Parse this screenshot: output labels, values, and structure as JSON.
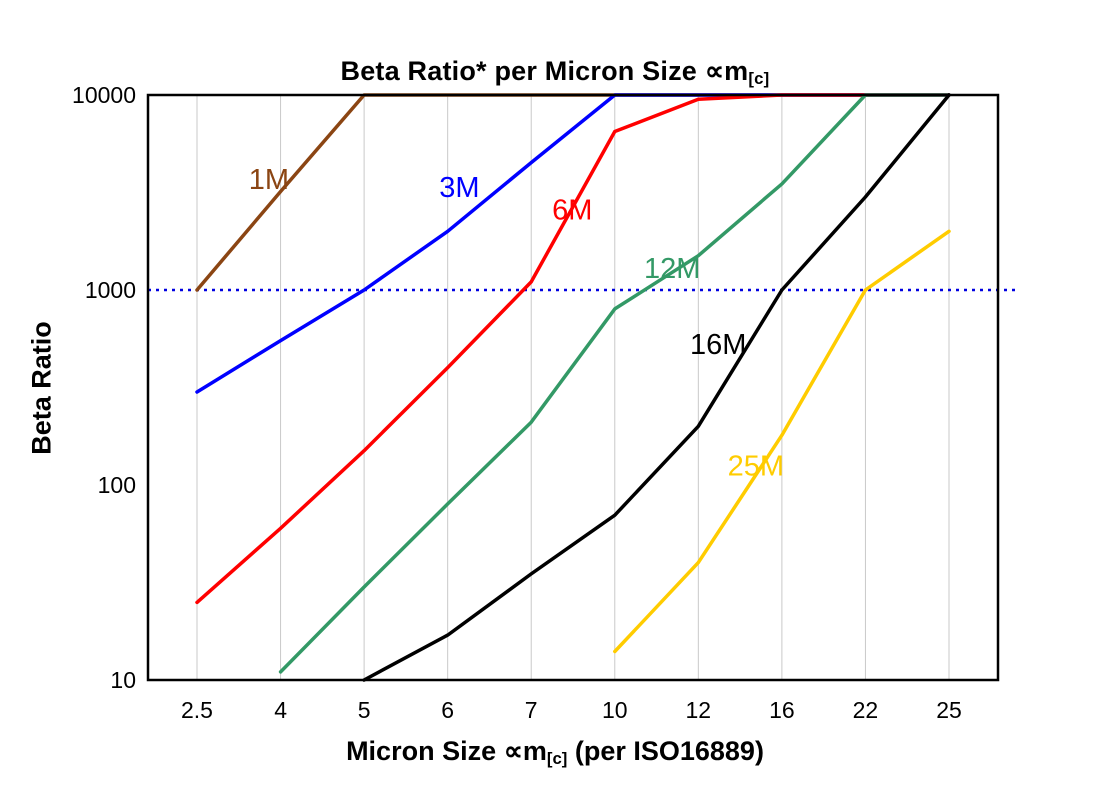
{
  "chart_data": {
    "type": "line",
    "title_main": "Beta Ratio* per Micron Size ∝m",
    "title_sub": "[c]",
    "ylabel": "Beta Ratio",
    "xlabel_main": "Micron Size ∝m",
    "xlabel_sub": "[c]",
    "xlabel_tail": " (per ISO16889)",
    "x_categories": [
      "2.5",
      "4",
      "5",
      "6",
      "7",
      "10",
      "12",
      "16",
      "22",
      "25"
    ],
    "y_scale": "log",
    "ylim": [
      10,
      10000
    ],
    "y_ticks": [
      10,
      100,
      1000,
      10000
    ],
    "grid": "vertical",
    "grid_color": "#c9c9c9",
    "reference_line": {
      "y": 1000,
      "color": "#0000E0",
      "style": "dotted"
    },
    "series": [
      {
        "name": "1M",
        "color": "#8B4513",
        "values": [
          1000,
          3200,
          10000,
          10000,
          10000,
          10000,
          10000,
          10000,
          10000,
          10000
        ],
        "label": {
          "xi": 0.62,
          "y": 3300
        }
      },
      {
        "name": "3M",
        "color": "#0000FF",
        "values": [
          300,
          550,
          1000,
          2000,
          4500,
          10000,
          10000,
          10000,
          10000,
          10000
        ],
        "label": {
          "xi": 2.9,
          "y": 3000
        }
      },
      {
        "name": "6M",
        "color": "#FF0000",
        "values": [
          25,
          60,
          150,
          400,
          1100,
          6500,
          9500,
          10000,
          10000,
          10000
        ],
        "label": {
          "xi": 4.25,
          "y": 2300
        }
      },
      {
        "name": "12M",
        "color": "#339966",
        "values": [
          null,
          11,
          30,
          80,
          210,
          800,
          1500,
          3500,
          10000,
          10000
        ],
        "label": {
          "xi": 5.35,
          "y": 1150
        }
      },
      {
        "name": "16M",
        "color": "#000000",
        "values": [
          null,
          null,
          10,
          17,
          35,
          70,
          200,
          1000,
          3000,
          10000
        ],
        "label": {
          "xi": 5.9,
          "y": 470
        }
      },
      {
        "name": "25M",
        "color": "#FFCC00",
        "values": [
          null,
          null,
          null,
          null,
          null,
          14,
          40,
          180,
          1000,
          2000
        ],
        "label": {
          "xi": 6.35,
          "y": 112
        }
      }
    ]
  }
}
